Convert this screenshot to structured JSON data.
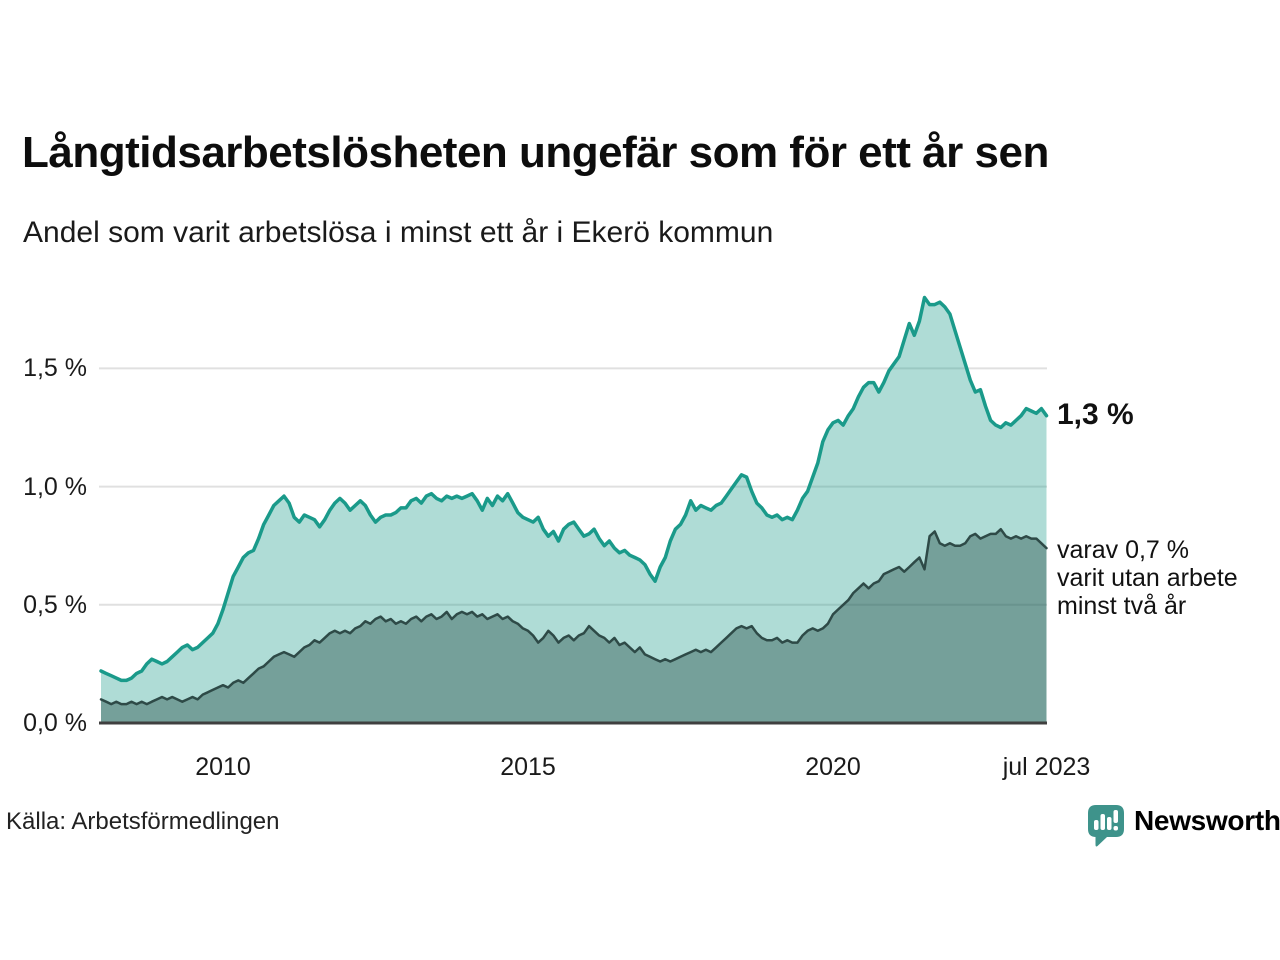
{
  "title": "Långtidsarbetslösheten ungefär som för ett år sen",
  "subtitle": "Andel som varit arbetslösa i minst ett år i Ekerö kommun",
  "source": "Källa: Arbetsförmedlingen",
  "brand": {
    "name": "Newsworthy",
    "color": "#3e938b"
  },
  "annotations": {
    "end_label_primary": "1,3 %",
    "secondary_lines": [
      "varav 0,7 %",
      "varit utan arbete",
      "minst två år"
    ]
  },
  "colors": {
    "line_primary": "#1a9a8a",
    "fill_primary": "rgba(26,154,138,0.35)",
    "line_secondary": "#2e4a47",
    "fill_secondary": "rgba(24,62,58,0.38)",
    "gridline": "#e0e0e0",
    "axis": "#3f3f3f",
    "text": "#111111"
  },
  "chart_data": {
    "type": "area",
    "title": "Långtidsarbetslösheten ungefär som för ett år sen",
    "subtitle": "Andel som varit arbetslösa i minst ett år i Ekerö kommun",
    "unit": "%",
    "x_start_year": 2008.0,
    "x_monthly_step": 0.0833333,
    "x_end_year": 2023.5,
    "ylim": [
      0,
      1.9
    ],
    "grid": true,
    "y_ticks": [
      {
        "value": 1.5,
        "label": "1,5 %"
      },
      {
        "value": 1.0,
        "label": "1,0 %"
      },
      {
        "value": 0.5,
        "label": "0,5 %"
      },
      {
        "value": 0.0,
        "label": "0,0 %"
      }
    ],
    "x_ticks": [
      {
        "year": 2010,
        "label": "2010"
      },
      {
        "year": 2015,
        "label": "2015"
      },
      {
        "year": 2020,
        "label": "2020"
      },
      {
        "year": 2023.5,
        "label": "jul 2023"
      }
    ],
    "series": [
      {
        "name": "Andel arbetslösa minst ett år",
        "end_value": 1.3,
        "values": [
          0.22,
          0.21,
          0.2,
          0.19,
          0.18,
          0.18,
          0.19,
          0.21,
          0.22,
          0.25,
          0.27,
          0.26,
          0.25,
          0.26,
          0.28,
          0.3,
          0.32,
          0.33,
          0.31,
          0.32,
          0.34,
          0.36,
          0.38,
          0.42,
          0.48,
          0.55,
          0.62,
          0.66,
          0.7,
          0.72,
          0.73,
          0.78,
          0.84,
          0.88,
          0.92,
          0.94,
          0.96,
          0.93,
          0.87,
          0.85,
          0.88,
          0.87,
          0.86,
          0.83,
          0.86,
          0.9,
          0.93,
          0.95,
          0.93,
          0.9,
          0.92,
          0.94,
          0.92,
          0.88,
          0.85,
          0.87,
          0.88,
          0.88,
          0.89,
          0.91,
          0.91,
          0.94,
          0.95,
          0.93,
          0.96,
          0.97,
          0.95,
          0.94,
          0.96,
          0.95,
          0.96,
          0.95,
          0.96,
          0.97,
          0.94,
          0.9,
          0.95,
          0.92,
          0.96,
          0.94,
          0.97,
          0.93,
          0.89,
          0.87,
          0.86,
          0.85,
          0.87,
          0.82,
          0.79,
          0.81,
          0.77,
          0.82,
          0.84,
          0.85,
          0.82,
          0.79,
          0.8,
          0.82,
          0.78,
          0.75,
          0.77,
          0.74,
          0.72,
          0.73,
          0.71,
          0.7,
          0.69,
          0.67,
          0.63,
          0.6,
          0.66,
          0.7,
          0.77,
          0.82,
          0.84,
          0.88,
          0.94,
          0.9,
          0.92,
          0.91,
          0.9,
          0.92,
          0.93,
          0.96,
          0.99,
          1.02,
          1.05,
          1.04,
          0.98,
          0.93,
          0.91,
          0.88,
          0.87,
          0.88,
          0.86,
          0.87,
          0.86,
          0.9,
          0.95,
          0.98,
          1.04,
          1.1,
          1.19,
          1.24,
          1.27,
          1.28,
          1.26,
          1.3,
          1.33,
          1.38,
          1.42,
          1.44,
          1.44,
          1.4,
          1.44,
          1.49,
          1.52,
          1.55,
          1.62,
          1.69,
          1.64,
          1.7,
          1.8,
          1.77,
          1.77,
          1.78,
          1.76,
          1.73,
          1.66,
          1.59,
          1.52,
          1.45,
          1.4,
          1.41,
          1.34,
          1.28,
          1.26,
          1.25,
          1.27,
          1.26,
          1.28,
          1.3,
          1.33,
          1.32,
          1.31,
          1.33,
          1.3
        ]
      },
      {
        "name": "Varav utan arbete minst två år",
        "end_value": 0.7,
        "values": [
          0.1,
          0.09,
          0.08,
          0.09,
          0.08,
          0.08,
          0.09,
          0.08,
          0.09,
          0.08,
          0.09,
          0.1,
          0.11,
          0.1,
          0.11,
          0.1,
          0.09,
          0.1,
          0.11,
          0.1,
          0.12,
          0.13,
          0.14,
          0.15,
          0.16,
          0.15,
          0.17,
          0.18,
          0.17,
          0.19,
          0.21,
          0.23,
          0.24,
          0.26,
          0.28,
          0.29,
          0.3,
          0.29,
          0.28,
          0.3,
          0.32,
          0.33,
          0.35,
          0.34,
          0.36,
          0.38,
          0.39,
          0.38,
          0.39,
          0.38,
          0.4,
          0.41,
          0.43,
          0.42,
          0.44,
          0.45,
          0.43,
          0.44,
          0.42,
          0.43,
          0.42,
          0.44,
          0.45,
          0.43,
          0.45,
          0.46,
          0.44,
          0.45,
          0.47,
          0.44,
          0.46,
          0.47,
          0.46,
          0.47,
          0.45,
          0.46,
          0.44,
          0.45,
          0.46,
          0.44,
          0.45,
          0.43,
          0.42,
          0.4,
          0.39,
          0.37,
          0.34,
          0.36,
          0.39,
          0.37,
          0.34,
          0.36,
          0.37,
          0.35,
          0.37,
          0.38,
          0.41,
          0.39,
          0.37,
          0.36,
          0.34,
          0.36,
          0.33,
          0.34,
          0.32,
          0.3,
          0.32,
          0.29,
          0.28,
          0.27,
          0.26,
          0.27,
          0.26,
          0.27,
          0.28,
          0.29,
          0.3,
          0.31,
          0.3,
          0.31,
          0.3,
          0.32,
          0.34,
          0.36,
          0.38,
          0.4,
          0.41,
          0.4,
          0.41,
          0.38,
          0.36,
          0.35,
          0.35,
          0.36,
          0.34,
          0.35,
          0.34,
          0.34,
          0.37,
          0.39,
          0.4,
          0.39,
          0.4,
          0.42,
          0.46,
          0.48,
          0.5,
          0.52,
          0.55,
          0.57,
          0.59,
          0.57,
          0.59,
          0.6,
          0.63,
          0.64,
          0.65,
          0.66,
          0.64,
          0.66,
          0.68,
          0.7,
          0.65,
          0.79,
          0.81,
          0.76,
          0.75,
          0.76,
          0.75,
          0.75,
          0.76,
          0.79,
          0.8,
          0.78,
          0.79,
          0.8,
          0.8,
          0.82,
          0.79,
          0.78,
          0.79,
          0.78,
          0.79,
          0.78,
          0.78,
          0.76,
          0.74
        ]
      }
    ]
  }
}
